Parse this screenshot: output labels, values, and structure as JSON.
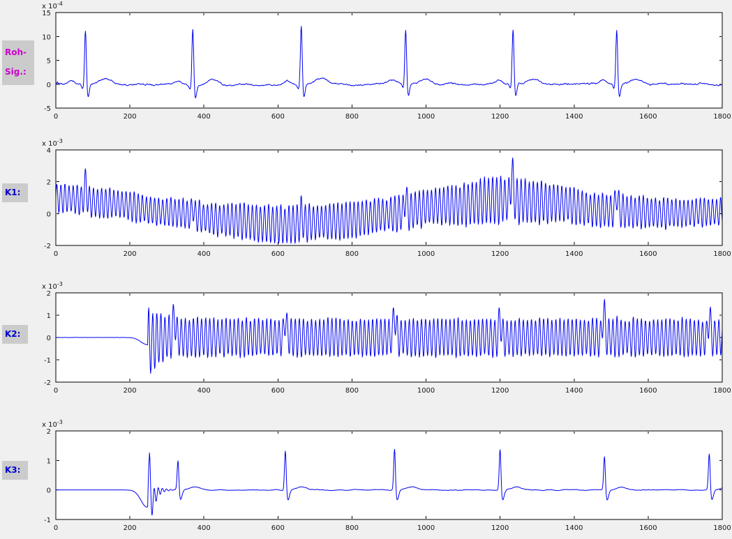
{
  "figure": {
    "background": "#f0f0f0",
    "plot_background": "#ffffff",
    "axis_color": "#000000",
    "tick_label_color": "#151515",
    "line_color": "#0000ee",
    "label_box_bg": "#cbcbcb"
  },
  "labels": {
    "roh": {
      "lines": [
        "Roh-",
        "Sig.:"
      ],
      "color": "#cc00cc"
    },
    "k1": {
      "text": "K1:",
      "color": "#0000cc"
    },
    "k2": {
      "text": "K2:",
      "color": "#0000cc"
    },
    "k3": {
      "text": "K3:",
      "color": "#0000cc"
    }
  },
  "chart_data": [
    {
      "type": "line",
      "name": "roh-signal",
      "label": "Roh-Sig.:",
      "x": {
        "min": 0,
        "max": 1800,
        "ticks": [
          0,
          200,
          400,
          600,
          800,
          1000,
          1200,
          1400,
          1600,
          1800
        ]
      },
      "y": {
        "min": -5,
        "max": 15,
        "ticks": [
          -5,
          0,
          5,
          10,
          15
        ],
        "exponent": {
          "text": "x 10",
          "sup": "-4"
        }
      },
      "signal": {
        "kind": "ecg",
        "seed": 11,
        "beats": [
          80,
          370,
          663,
          945,
          1235,
          1515
        ],
        "r_amps": [
          11.5,
          12.1,
          12.6,
          11.4,
          11.6,
          11.7
        ],
        "r_width": 2.4,
        "p_wave": {
          "offset": -38,
          "amp": 0.7,
          "width": 9
        },
        "q_wave": {
          "offset": -7,
          "amp": -0.9,
          "width": 3
        },
        "s_wave": {
          "offset": 7,
          "amp": -2.7,
          "width": 3.2
        },
        "t_wave": {
          "offset": 55,
          "amp": 1.1,
          "width": 16
        },
        "noise_slow": 0.45,
        "noise_fast": 0.12
      }
    },
    {
      "type": "line",
      "name": "k1",
      "label": "K1:",
      "x": {
        "min": 0,
        "max": 1800,
        "ticks": [
          0,
          200,
          400,
          600,
          800,
          1000,
          1200,
          1400,
          1600,
          1800
        ]
      },
      "y": {
        "min": -2,
        "max": 4,
        "ticks": [
          -2,
          0,
          2,
          4
        ],
        "exponent": {
          "text": "x 10",
          "sup": "-3"
        }
      },
      "signal": {
        "kind": "am_osc",
        "seed": 22,
        "period": 11,
        "center_points": [
          [
            0,
            1.0
          ],
          [
            150,
            0.62
          ],
          [
            300,
            0.1
          ],
          [
            450,
            -0.4
          ],
          [
            600,
            -0.68
          ],
          [
            750,
            -0.5
          ],
          [
            900,
            -0.05
          ],
          [
            1050,
            0.5
          ],
          [
            1200,
            0.85
          ],
          [
            1320,
            0.72
          ],
          [
            1500,
            0.18
          ],
          [
            1650,
            0.02
          ],
          [
            1800,
            0.1
          ]
        ],
        "amp_points": [
          [
            0,
            0.95
          ],
          [
            300,
            0.85
          ],
          [
            600,
            1.15
          ],
          [
            900,
            1.05
          ],
          [
            1200,
            1.4
          ],
          [
            1500,
            1.0
          ],
          [
            1800,
            0.8
          ]
        ],
        "amp_jitter": 0.22,
        "spikes": {
          "pos": [
            80,
            370,
            663,
            945,
            1232,
            1515
          ],
          "amp": [
            1.2,
            0.55,
            0.5,
            1.05,
            1.8,
            1.05
          ],
          "width": 3
        }
      }
    },
    {
      "type": "line",
      "name": "k2",
      "label": "K2:",
      "x": {
        "min": 0,
        "max": 1800,
        "ticks": [
          0,
          200,
          400,
          600,
          800,
          1000,
          1200,
          1400,
          1600,
          1800
        ]
      },
      "y": {
        "min": -2,
        "max": 2,
        "ticks": [
          -2,
          -1,
          0,
          1,
          2
        ],
        "exponent": {
          "text": "x 10",
          "sup": "-3"
        }
      },
      "signal": {
        "kind": "burst_osc",
        "seed": 33,
        "start": 248,
        "pre_dip": {
          "center": 247,
          "width": 17,
          "amp": -0.32
        },
        "period": 11,
        "amp_steady": 0.82,
        "amp_init": 1.55,
        "decay_tau": 30,
        "amp_jitter": 0.22,
        "noise": 0.02,
        "spikes": {
          "pos": [
            320,
            620,
            915,
            1200,
            1480,
            1765
          ],
          "amp": [
            1.05,
            0.9,
            1.15,
            0.9,
            1.2,
            1.0
          ],
          "width": 3
        }
      }
    },
    {
      "type": "line",
      "name": "k3",
      "label": "K3:",
      "x": {
        "min": 0,
        "max": 1800,
        "ticks": [
          0,
          200,
          400,
          600,
          800,
          1000,
          1200,
          1400,
          1600,
          1800
        ]
      },
      "y": {
        "min": -1,
        "max": 2,
        "ticks": [
          -1,
          0,
          1,
          2
        ],
        "exponent": {
          "text": "x 10",
          "sup": "-3"
        }
      },
      "signal": {
        "kind": "filtered_ecg",
        "seed": 44,
        "pre_dip": {
          "center": 246,
          "width": 16,
          "amp": -0.58
        },
        "onset": 252,
        "onset_spike": {
          "amp": 1.55,
          "width": 2
        },
        "ringing": {
          "amp": 0.8,
          "tau": 15,
          "period": 11
        },
        "beats": [
          330,
          620,
          915,
          1200,
          1482,
          1765
        ],
        "r_amps": [
          1.05,
          1.42,
          1.45,
          1.45,
          1.2,
          1.28
        ],
        "r_width": 2.3,
        "s_wave": {
          "offset": 7,
          "amp": -0.34,
          "width": 4
        },
        "t_wave": {
          "offset": 45,
          "amp": 0.1,
          "width": 14
        },
        "noise_slow": 0.05
      }
    }
  ]
}
